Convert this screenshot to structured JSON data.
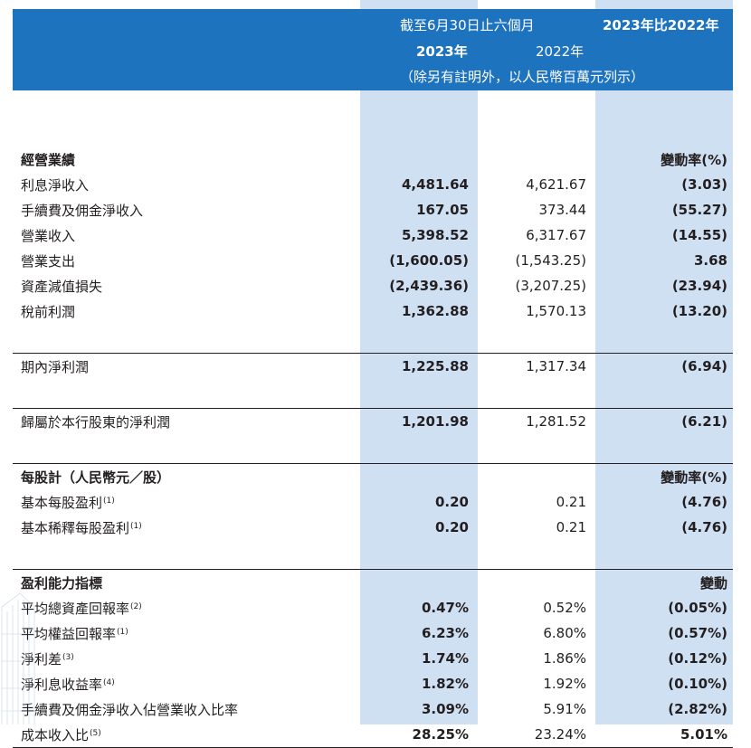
{
  "header": {
    "period_label": "截至6月30日止六個月",
    "change_label": "2023年比2022年",
    "year_2023": "2023年",
    "year_2022": "2022年",
    "unit_note": "（除另有註明外，以人民幣百萬元列示）"
  },
  "sections": [
    {
      "title": "經營業績",
      "change_header": "變動率(%)",
      "rows": [
        {
          "label": "利息淨收入",
          "v2023": "4,481.64",
          "v2022": "4,621.67",
          "change": "(3.03)"
        },
        {
          "label": "手續費及佣金淨收入",
          "v2023": "167.05",
          "v2022": "373.44",
          "change": "(55.27)"
        },
        {
          "label": "營業收入",
          "v2023": "5,398.52",
          "v2022": "6,317.67",
          "change": "(14.55)"
        },
        {
          "label": "營業支出",
          "v2023": "(1,600.05)",
          "v2022": "(1,543.25)",
          "change": "3.68"
        },
        {
          "label": "資產減值損失",
          "v2023": "(2,439.36)",
          "v2022": "(3,207.25)",
          "change": "(23.94)"
        },
        {
          "label": "稅前利潤",
          "v2023": "1,362.88",
          "v2022": "1,570.13",
          "change": "(13.20)"
        }
      ]
    },
    {
      "rows": [
        {
          "label": "期內淨利潤",
          "v2023": "1,225.88",
          "v2022": "1,317.34",
          "change": "(6.94)"
        }
      ]
    },
    {
      "rows": [
        {
          "label": "歸屬於本行股東的淨利潤",
          "v2023": "1,201.98",
          "v2022": "1,281.52",
          "change": "(6.21)"
        }
      ]
    },
    {
      "title": "每股計（人民幣元／股）",
      "change_header": "變動率(%)",
      "rows": [
        {
          "label": "基本每股盈利",
          "note": "(1)",
          "v2023": "0.20",
          "v2022": "0.21",
          "change": "(4.76)"
        },
        {
          "label": "基本稀釋每股盈利",
          "note": "(1)",
          "v2023": "0.20",
          "v2022": "0.21",
          "change": "(4.76)"
        }
      ]
    },
    {
      "title": "盈利能力指標",
      "change_header": "變動",
      "rows": [
        {
          "label": "平均總資產回報率",
          "note": "(2)",
          "v2023": "0.47%",
          "v2022": "0.52%",
          "change": "(0.05%)"
        },
        {
          "label": "平均權益回報率",
          "note": "(1)",
          "v2023": "6.23%",
          "v2022": "6.80%",
          "change": "(0.57%)"
        },
        {
          "label": "淨利差",
          "note": "(3)",
          "v2023": "1.74%",
          "v2022": "1.86%",
          "change": "(0.12%)"
        },
        {
          "label": "淨利息收益率",
          "note": "(4)",
          "v2023": "1.82%",
          "v2022": "1.92%",
          "change": "(0.10%)"
        },
        {
          "label": "手續費及佣金淨收入佔營業收入比率",
          "v2023": "3.09%",
          "v2022": "5.91%",
          "change": "(2.82%)"
        },
        {
          "label": "成本收入比",
          "note": "(5)",
          "v2023": "28.25%",
          "v2022": "23.24%",
          "change": "5.01%"
        }
      ]
    }
  ],
  "colors": {
    "header_bg": "#1e73be",
    "column_shade": "#cfe0f3",
    "rule": "#231f20"
  }
}
